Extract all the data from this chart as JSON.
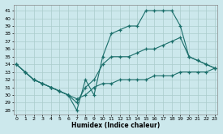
{
  "xlabel": "Humidex (Indice chaleur)",
  "background_color": "#cce8ec",
  "grid_color": "#aacccc",
  "line_color": "#1a6e6a",
  "ylim": [
    27.5,
    41.8
  ],
  "xlim": [
    -0.3,
    23.3
  ],
  "yticks": [
    28,
    29,
    30,
    31,
    32,
    33,
    34,
    35,
    36,
    37,
    38,
    39,
    40,
    41
  ],
  "xticks": [
    0,
    1,
    2,
    3,
    4,
    5,
    6,
    7,
    8,
    9,
    10,
    11,
    12,
    13,
    14,
    15,
    16,
    17,
    18,
    19,
    20,
    21,
    22,
    23
  ],
  "series1_x": [
    0,
    1,
    2,
    3,
    4,
    5,
    6,
    7,
    8,
    9,
    10,
    11,
    12,
    13,
    14,
    15,
    16,
    17,
    18,
    19,
    20,
    21,
    22,
    23
  ],
  "series1_y": [
    34,
    33,
    32,
    31.5,
    31,
    30.5,
    30,
    29.5,
    30,
    31,
    31.5,
    31.5,
    32,
    32,
    32,
    32,
    32.5,
    32.5,
    32.5,
    33,
    33,
    33,
    33,
    33.5
  ],
  "series2_x": [
    0,
    1,
    2,
    3,
    4,
    5,
    6,
    7,
    8,
    9,
    10,
    11,
    12,
    13,
    14,
    15,
    16,
    17,
    18,
    19,
    20,
    21,
    22,
    23
  ],
  "series2_y": [
    34,
    33,
    32,
    31.5,
    31,
    30.5,
    30,
    29,
    31,
    32,
    34,
    35,
    35,
    35,
    35.5,
    36,
    36,
    36.5,
    37,
    37.5,
    35,
    34.5,
    34,
    33.5
  ],
  "series3_x": [
    0,
    1,
    2,
    3,
    4,
    5,
    6,
    7,
    8,
    9,
    10,
    11,
    12,
    13,
    14,
    15,
    16,
    17,
    18,
    19,
    20,
    21,
    22,
    23
  ],
  "series3_y": [
    34,
    33,
    32,
    31.5,
    31,
    30.5,
    30,
    28,
    32,
    30,
    35,
    38,
    38.5,
    39,
    39,
    41,
    41,
    41,
    41,
    39,
    35,
    34.5,
    34,
    33.5
  ]
}
